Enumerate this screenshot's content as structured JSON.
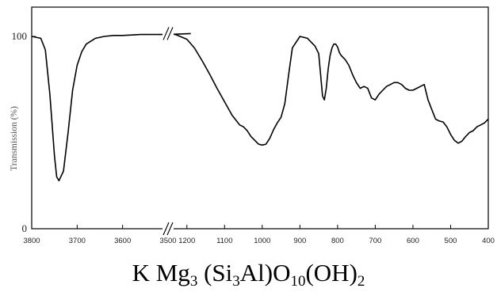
{
  "chart_data": {
    "type": "line",
    "title": "",
    "xlabel": "",
    "ylabel": "Transmission (%)",
    "x_axis_segments": [
      {
        "xlim": [
          3800,
          3500
        ],
        "ticks": [
          3800,
          3700,
          3600,
          3500
        ]
      },
      {
        "xlim": [
          1250,
          400
        ],
        "ticks": [
          1200,
          1100,
          1000,
          900,
          800,
          700,
          600,
          500,
          400
        ]
      }
    ],
    "x_break": "//",
    "y_ticks": [
      0,
      100
    ],
    "ylim": [
      0,
      100
    ],
    "grid": false,
    "series": [
      {
        "color": "#000000",
        "segment_1": {
          "x": [
            3800,
            3780,
            3770,
            3760,
            3750,
            3745,
            3740,
            3730,
            3720,
            3710,
            3700,
            3690,
            3680,
            3660,
            3640,
            3620,
            3600,
            3560,
            3500,
            3450
          ],
          "y": [
            100,
            99,
            93,
            70,
            38,
            27,
            25,
            30,
            50,
            72,
            85,
            92,
            96,
            99,
            100,
            100.5,
            100.5,
            101,
            101,
            101.5
          ]
        },
        "segment_2": {
          "x": [
            1250,
            1230,
            1200,
            1180,
            1160,
            1140,
            1120,
            1100,
            1080,
            1060,
            1050,
            1040,
            1030,
            1020,
            1010,
            1000,
            990,
            980,
            970,
            960,
            950,
            940,
            930,
            920,
            900,
            880,
            870,
            860,
            850,
            845,
            840,
            835,
            830,
            825,
            820,
            815,
            810,
            805,
            800,
            795,
            790,
            780,
            770,
            760,
            750,
            740,
            730,
            720,
            710,
            700,
            690,
            680,
            670,
            660,
            650,
            640,
            630,
            620,
            610,
            600,
            590,
            580,
            570,
            560,
            550,
            540,
            530,
            520,
            510,
            500,
            490,
            480,
            470,
            460,
            450,
            440,
            430,
            420,
            410,
            400
          ],
          "y": [
            101.5,
            101,
            98.5,
            94,
            87.5,
            80.5,
            73,
            66,
            59,
            54,
            53,
            51,
            48,
            46,
            44,
            43.5,
            44,
            47,
            51.5,
            55,
            58,
            65,
            80,
            94,
            100,
            99,
            97,
            95,
            91,
            80,
            69,
            67,
            73,
            83,
            90,
            94,
            96,
            96,
            94.5,
            91.5,
            90,
            88,
            85,
            80,
            76,
            73,
            74,
            73,
            68,
            67,
            70,
            72,
            74,
            75,
            76,
            76,
            75,
            73,
            72,
            72,
            73,
            74,
            75,
            67,
            62,
            57,
            56,
            55.5,
            53,
            49,
            46,
            44.5,
            45.5,
            48,
            50,
            51,
            53,
            54,
            55,
            57
          ]
        }
      }
    ]
  },
  "caption": {
    "parts": [
      {
        "t": "K Mg",
        "sub": false
      },
      {
        "t": "3",
        "sub": true
      },
      {
        "t": " (Si",
        "sub": false
      },
      {
        "t": "3",
        "sub": true
      },
      {
        "t": "Al)O",
        "sub": false
      },
      {
        "t": "10",
        "sub": true
      },
      {
        "t": "(OH)",
        "sub": false
      },
      {
        "t": "2",
        "sub": true
      }
    ]
  }
}
